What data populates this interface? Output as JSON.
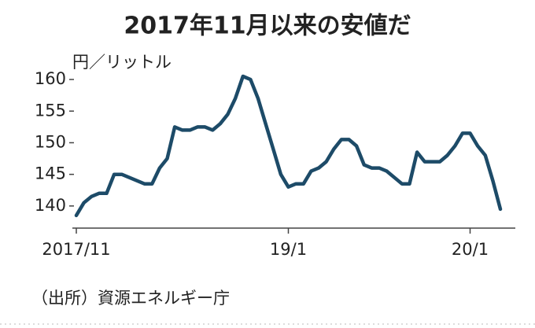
{
  "chart_data": {
    "type": "line",
    "title": "2017年11月以来の安値だ",
    "y_label": "円／リットル",
    "source": "（出所）資源エネルギー庁",
    "categories": [
      "2017/11",
      null,
      null,
      null,
      null,
      null,
      null,
      null,
      null,
      null,
      null,
      null,
      null,
      null,
      null,
      null,
      null,
      null,
      null,
      null,
      null,
      null,
      null,
      null,
      null,
      null,
      null,
      null,
      "19/1",
      null,
      null,
      null,
      null,
      null,
      null,
      null,
      null,
      null,
      null,
      null,
      null,
      null,
      null,
      null,
      null,
      null,
      null,
      null,
      null,
      null,
      null,
      null,
      "20/1",
      null,
      null,
      null,
      null
    ],
    "series": [
      {
        "color": "#1d4b68",
        "values": [
          138.5,
          140.5,
          141.5,
          142,
          142,
          145,
          145,
          144.5,
          144,
          143.5,
          143.5,
          146,
          147.5,
          152.5,
          152,
          152,
          152.5,
          152.5,
          152,
          153,
          154.5,
          157,
          160.5,
          160,
          157,
          153,
          149,
          145,
          143,
          143.5,
          143.5,
          145.5,
          146,
          147,
          149,
          150.5,
          150.5,
          149.5,
          146.5,
          146,
          146,
          145.5,
          144.5,
          143.5,
          143.5,
          148.5,
          147,
          147,
          147,
          148,
          149.5,
          151.5,
          151.5,
          149.5,
          148,
          144,
          139.5
        ]
      }
    ],
    "ylim": [
      136.5,
      161.5
    ],
    "yticks": [
      140,
      145,
      150,
      155,
      160
    ]
  }
}
